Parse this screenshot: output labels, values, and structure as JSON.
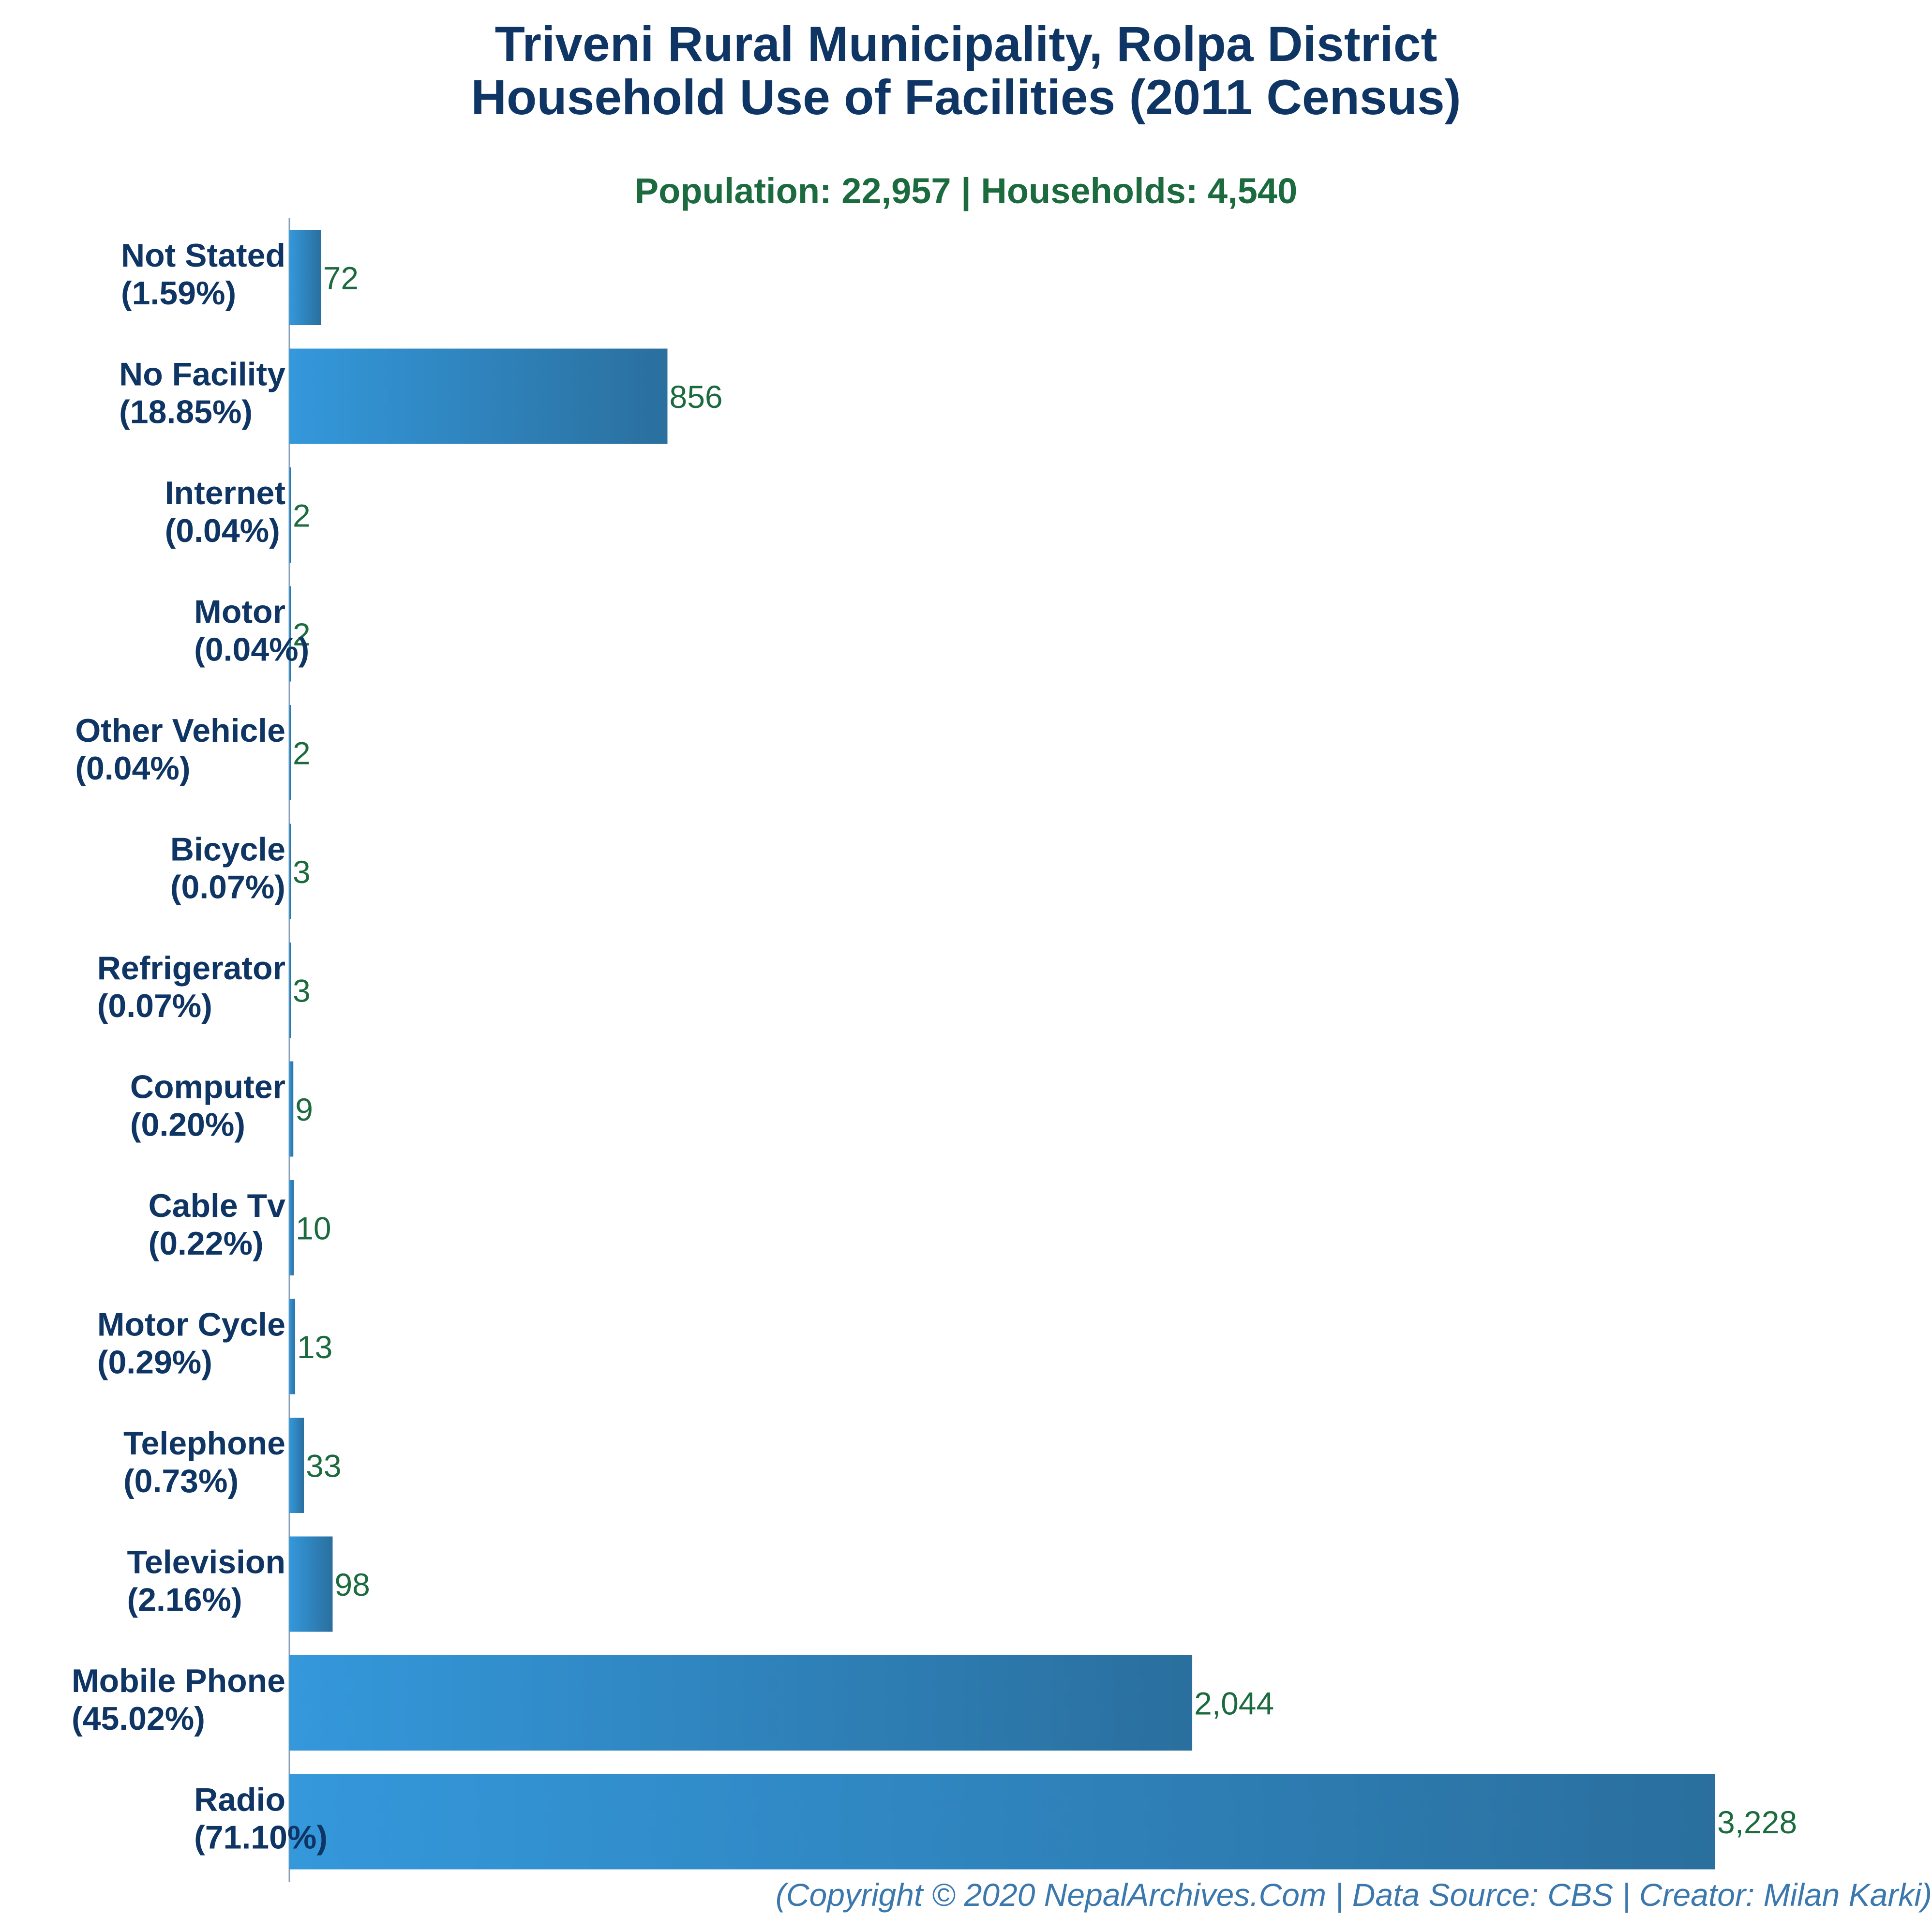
{
  "chart_title_line1": "Triveni Rural Municipality, Rolpa District",
  "chart_title_line2": "Household Use of Facilities (2011 Census)",
  "subtitle": "Population: 22,957 | Households: 4,540",
  "footer": "(Copyright © 2020 NepalArchives.Com | Data Source: CBS | Creator: Milan Karki)",
  "colors": {
    "title": "#0e3564",
    "subtitle": "#1c6b3e",
    "bar_light": "#3498db",
    "bar_dark": "#2a6f9e",
    "value_label": "#1c6b3e",
    "footer": "#3a78ae"
  },
  "chart_data": {
    "type": "bar",
    "orientation": "horizontal",
    "title": "Triveni Rural Municipality, Rolpa District Household Use of Facilities (2011 Census)",
    "xlabel": "",
    "ylabel": "",
    "xlim": [
      0,
      3228
    ],
    "grid": false,
    "categories": [
      {
        "name": "Not Stated",
        "pct": "(1.59%)",
        "value": 72,
        "value_label": "72"
      },
      {
        "name": "No Facility",
        "pct": "(18.85%)",
        "value": 856,
        "value_label": "856"
      },
      {
        "name": "Internet",
        "pct": "(0.04%)",
        "value": 2,
        "value_label": "2"
      },
      {
        "name": "Motor",
        "pct": "(0.04%)",
        "value": 2,
        "value_label": "2"
      },
      {
        "name": "Other Vehicle",
        "pct": "(0.04%)",
        "value": 2,
        "value_label": "2"
      },
      {
        "name": "Bicycle",
        "pct": "(0.07%)",
        "value": 3,
        "value_label": "3"
      },
      {
        "name": "Refrigerator",
        "pct": "(0.07%)",
        "value": 3,
        "value_label": "3"
      },
      {
        "name": "Computer",
        "pct": "(0.20%)",
        "value": 9,
        "value_label": "9"
      },
      {
        "name": "Cable Tv",
        "pct": "(0.22%)",
        "value": 10,
        "value_label": "10"
      },
      {
        "name": "Motor Cycle",
        "pct": "(0.29%)",
        "value": 13,
        "value_label": "13"
      },
      {
        "name": "Telephone",
        "pct": "(0.73%)",
        "value": 33,
        "value_label": "33"
      },
      {
        "name": "Television",
        "pct": "(2.16%)",
        "value": 98,
        "value_label": "98"
      },
      {
        "name": "Mobile Phone",
        "pct": "(45.02%)",
        "value": 2044,
        "value_label": "2,044"
      },
      {
        "name": "Radio",
        "pct": "(71.10%)",
        "value": 3228,
        "value_label": "3,228"
      }
    ]
  }
}
